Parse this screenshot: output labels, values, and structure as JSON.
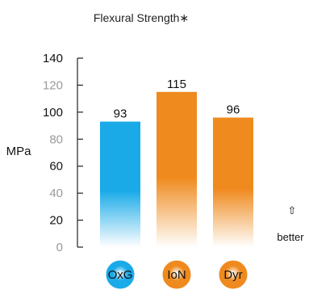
{
  "chart_data": {
    "type": "bar",
    "title": "Flexural Strength∗",
    "ylabel": "MPa",
    "xlabel": "",
    "ylim": [
      0,
      140
    ],
    "yticks": [
      0,
      20,
      40,
      60,
      80,
      100,
      120,
      140
    ],
    "categories": [
      "OxG",
      "IoN",
      "Dyr"
    ],
    "values": [
      93,
      115,
      96
    ],
    "grid": false,
    "annotation": {
      "symbol": "⇧",
      "text": "better"
    },
    "colors": {
      "OxG": "#1aaae8",
      "IoN": "#ef8a1e",
      "Dyr": "#ef8a1e",
      "tick_dark": "#111111",
      "tick_light": "#9a9a9a"
    }
  }
}
